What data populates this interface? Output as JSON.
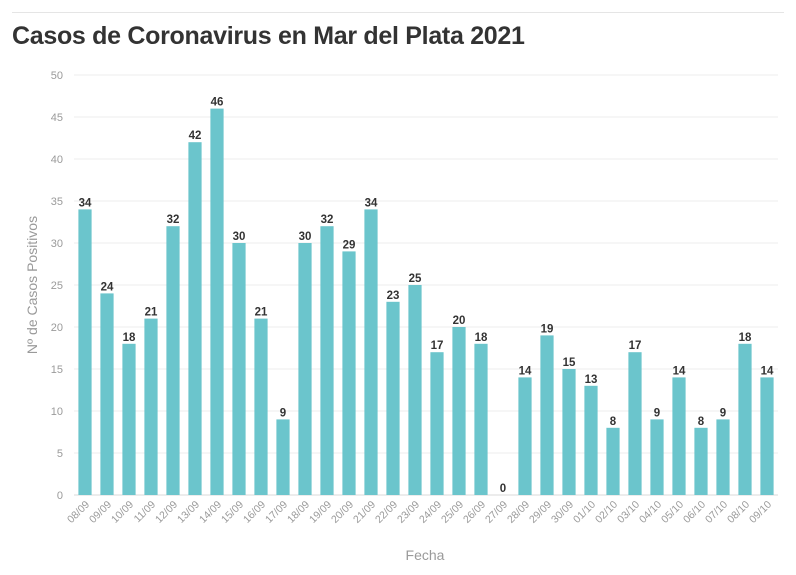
{
  "chart_data": {
    "type": "bar",
    "title": "Casos de Coronavirus en Mar del Plata 2021",
    "xlabel": "Fecha",
    "ylabel": "Nº de Casos Positivos",
    "ylim": [
      0,
      50
    ],
    "yticks": [
      0,
      5,
      10,
      15,
      20,
      25,
      30,
      35,
      40,
      45,
      50
    ],
    "grid": true,
    "bar_color": "#6bc5cc",
    "categories": [
      "08/09",
      "09/09",
      "10/09",
      "11/09",
      "12/09",
      "13/09",
      "14/09",
      "15/09",
      "16/09",
      "17/09",
      "18/09",
      "19/09",
      "20/09",
      "21/09",
      "22/09",
      "23/09",
      "24/09",
      "25/09",
      "26/09",
      "27/09",
      "28/09",
      "29/09",
      "30/09",
      "01/10",
      "02/10",
      "03/10",
      "04/10",
      "05/10",
      "06/10",
      "07/10",
      "08/10",
      "09/10"
    ],
    "values": [
      34,
      24,
      18,
      21,
      32,
      42,
      46,
      30,
      21,
      9,
      30,
      32,
      29,
      34,
      23,
      25,
      17,
      20,
      18,
      0,
      14,
      19,
      15,
      13,
      8,
      17,
      9,
      14,
      8,
      9,
      18,
      14
    ]
  }
}
